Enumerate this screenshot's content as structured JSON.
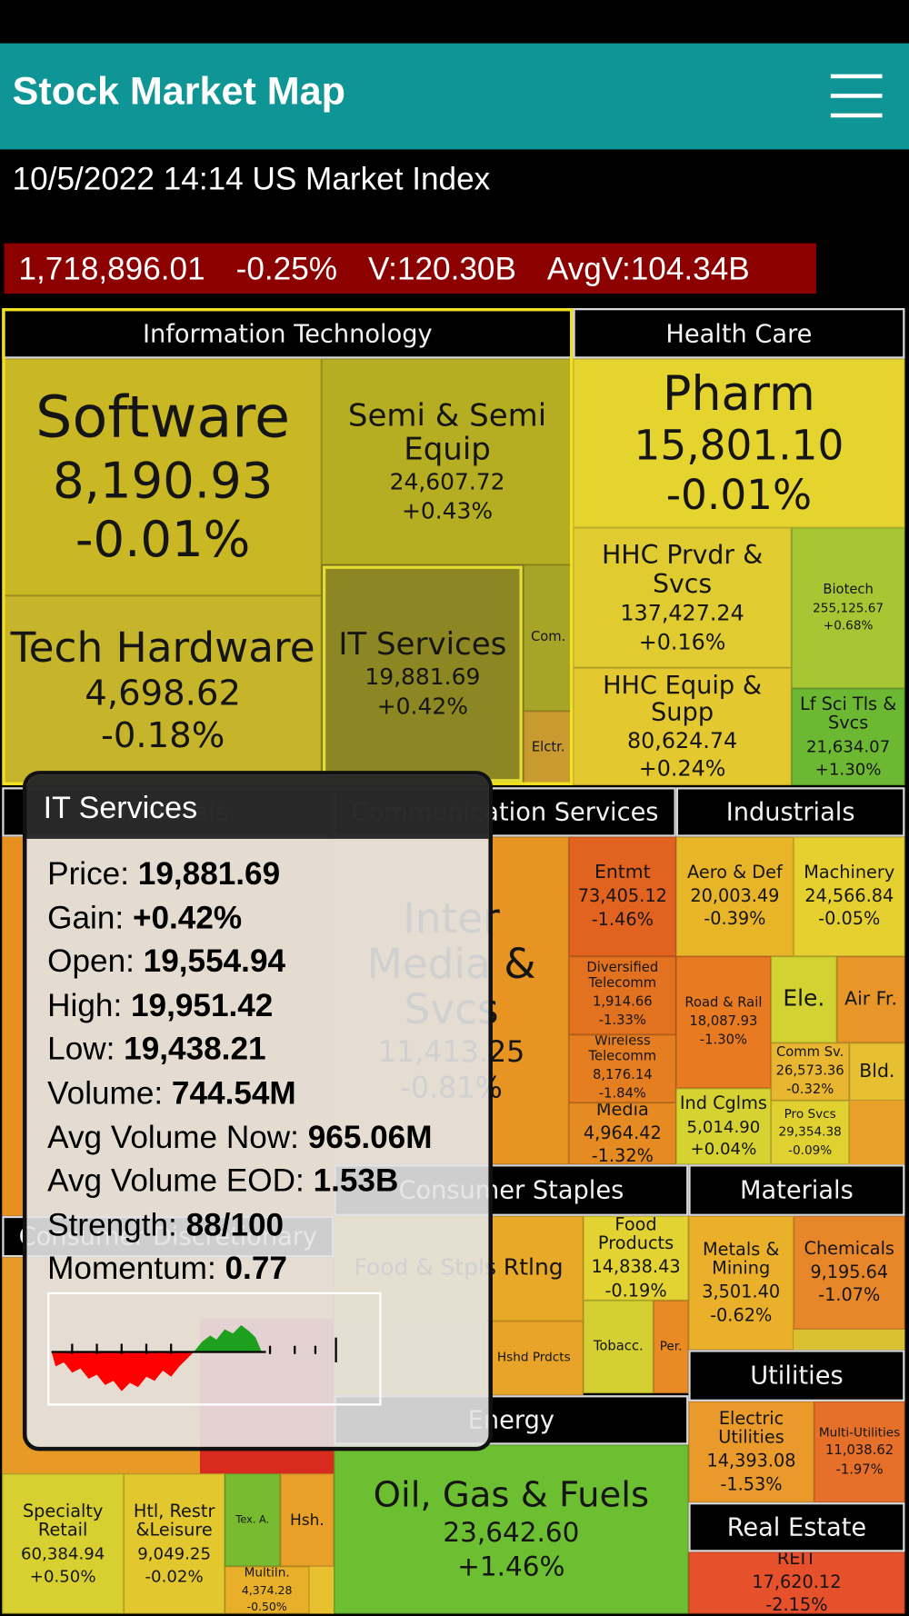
{
  "header": {
    "title": "Stock Market Map"
  },
  "subheader": "10/5/2022 14:14 US Market Index",
  "index": {
    "value": "1,718,896.01",
    "change": "-0.25%",
    "volume": "V:120.30B",
    "avg_volume": "AvgV:104.34B"
  },
  "sectors": [
    {
      "name": "Information Technology",
      "cells": [
        {
          "label": "Software",
          "price": "8,190.93",
          "change": "-0.01%"
        },
        {
          "label": "Tech Hardware",
          "price": "4,698.62",
          "change": "-0.18%"
        },
        {
          "label": "Semi & Semi Equip",
          "price": "24,607.72",
          "change": "+0.43%"
        },
        {
          "label": "IT Services",
          "price": "19,881.69",
          "change": "+0.42%"
        },
        {
          "label": "Com."
        },
        {
          "label": "Elctr."
        }
      ]
    },
    {
      "name": "Health Care",
      "cells": [
        {
          "label": "Pharm",
          "price": "15,801.10",
          "change": "-0.01%"
        },
        {
          "label": "HHC Prvdr & Svcs",
          "price": "137,427.24",
          "change": "+0.16%"
        },
        {
          "label": "HHC Equip & Supp",
          "price": "80,624.74",
          "change": "+0.24%"
        },
        {
          "label": "Biotech",
          "price": "255,125.67",
          "change": "+0.68%"
        },
        {
          "label": "Lf Sci Tls & Svcs",
          "price": "21,634.07",
          "change": "+1.30%"
        }
      ]
    },
    {
      "name": "Financials",
      "cells": []
    },
    {
      "name": "Communication Services",
      "cells": [
        {
          "label": "Inter Media & Svcs",
          "price": "11,413.25",
          "change": "-0.81%"
        },
        {
          "label": "Entmt",
          "price": "73,405.12",
          "change": "-1.46%"
        },
        {
          "label": "Diversified Telecomm",
          "price": "1,914.66",
          "change": "-1.33%"
        },
        {
          "label": "Wireless Telecomm",
          "price": "8,176.14",
          "change": "-1.84%"
        },
        {
          "label": "Media",
          "price": "4,964.42",
          "change": "-1.32%"
        }
      ]
    },
    {
      "name": "Industrials",
      "cells": [
        {
          "label": "Aero & Def",
          "price": "20,003.49",
          "change": "-0.39%"
        },
        {
          "label": "Machinery",
          "price": "24,566.84",
          "change": "-0.05%"
        },
        {
          "label": "Road & Rail",
          "price": "18,087.93",
          "change": "-1.30%"
        },
        {
          "label": "Ele."
        },
        {
          "label": "Air Fr."
        },
        {
          "label": "Comm Sv.",
          "price": "26,573.36",
          "change": "-0.32%"
        },
        {
          "label": "Bld."
        },
        {
          "label": "Ind Cglms",
          "price": "5,014.90",
          "change": "+0.04%"
        },
        {
          "label": "Pro Svcs",
          "price": "29,354.38",
          "change": "-0.09%"
        }
      ]
    },
    {
      "name": "Consumer Staples",
      "cells": [
        {
          "label": "Food & Stpls Rtlng"
        },
        {
          "label": "Hshd Prdcts"
        },
        {
          "label": "Food Products",
          "price": "14,838.43",
          "change": "-0.19%"
        },
        {
          "label": "Tobacc."
        },
        {
          "label": "Per."
        }
      ]
    },
    {
      "name": "Materials",
      "cells": [
        {
          "label": "Metals & Mining",
          "price": "3,501.40",
          "change": "-0.62%"
        },
        {
          "label": "Chemicals",
          "price": "9,195.64",
          "change": "-1.07%"
        }
      ]
    },
    {
      "name": "Utilities",
      "cells": [
        {
          "label": "Electric Utilities",
          "price": "14,393.08",
          "change": "-1.53%"
        },
        {
          "label": "Multi-Utilities",
          "price": "11,038.62",
          "change": "-1.97%"
        }
      ]
    },
    {
      "name": "Real Estate",
      "cells": [
        {
          "label": "REIT",
          "price": "17,620.12",
          "change": "-2.15%"
        }
      ]
    },
    {
      "name": "Energy",
      "cells": [
        {
          "label": "Oil, Gas & Fuels",
          "price": "23,642.60",
          "change": "+1.46%"
        }
      ]
    },
    {
      "name": "Consumer Discretionary",
      "cells": [
        {
          "label": "Specialty Retail",
          "price": "60,384.94",
          "change": "+0.50%"
        },
        {
          "label": "Htl, Restr &Leisure",
          "price": "9,049.25",
          "change": "-0.02%"
        },
        {
          "label": "Tex. A."
        },
        {
          "label": "Hsh."
        },
        {
          "label": "Multiln.",
          "price": "4,374.28",
          "change": "-0.50%"
        }
      ]
    }
  ],
  "tooltip": {
    "title": "IT Services",
    "rows": [
      {
        "label": "Price:",
        "value": "19,881.69"
      },
      {
        "label": "Gain:",
        "value": "+0.42%"
      },
      {
        "label": "Open:",
        "value": "19,554.94"
      },
      {
        "label": "High:",
        "value": "19,951.42"
      },
      {
        "label": "Low:",
        "value": "19,438.21"
      },
      {
        "label": "Volume:",
        "value": "744.54M"
      },
      {
        "label": "Avg Volume Now:",
        "value": "965.06M"
      },
      {
        "label": "Avg Volume EOD:",
        "value": "1.53B"
      },
      {
        "label": "Strength:",
        "value": "88/100"
      },
      {
        "label": "Momentum:",
        "value": "0.77"
      }
    ]
  }
}
